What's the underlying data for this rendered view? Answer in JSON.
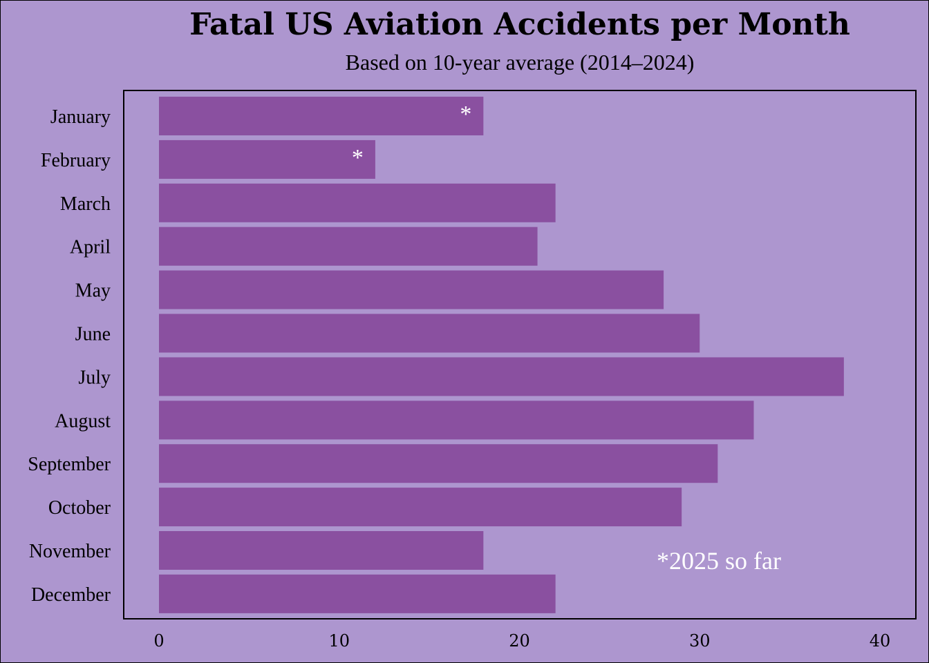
{
  "chart_data": {
    "type": "bar",
    "orientation": "horizontal",
    "title": "Fatal US Aviation Accidents per Month",
    "subtitle": "Based on 10-year average (2014–2024)",
    "categories": [
      "January",
      "February",
      "March",
      "April",
      "May",
      "June",
      "July",
      "August",
      "September",
      "October",
      "November",
      "December"
    ],
    "values": [
      18,
      12,
      22,
      21,
      28,
      30,
      38,
      33,
      31,
      29,
      18,
      22
    ],
    "bar_markers": [
      "*",
      "*",
      "",
      "",
      "",
      "",
      "",
      "",
      "",
      "",
      "",
      ""
    ],
    "xlim": [
      0,
      40
    ],
    "xticks": [
      0,
      10,
      20,
      30,
      40
    ],
    "annotation": "*2025 so far",
    "grid": false,
    "legend": "none",
    "colors": {
      "background": "#ad96cf",
      "bar": "#8a50a0",
      "marker": "#ffffff",
      "text": "#000000"
    }
  }
}
